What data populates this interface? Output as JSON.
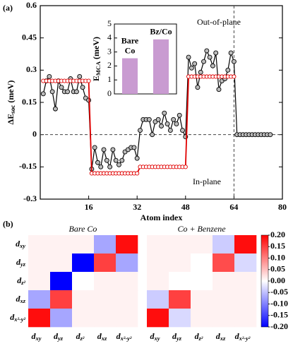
{
  "panel_labels": [
    "(a)",
    "(b)"
  ],
  "chart_data": [
    {
      "type": "line",
      "ylabel": {
        "text": "ΔE",
        "sub": "soc",
        "unit": "(meV)"
      },
      "xlabel": "Atom index",
      "annotations": [
        "Out-of-plane",
        "In-plane"
      ],
      "xlim": [
        0,
        80
      ],
      "xticks": [
        16,
        32,
        48,
        64,
        80
      ],
      "ylim": [
        -0.3,
        0.6
      ],
      "yticks": [
        -0.3,
        -0.15,
        0,
        0.15,
        0.3,
        0.45,
        0.6
      ],
      "vline_x": 64,
      "x": [
        1,
        2,
        3,
        4,
        5,
        6,
        7,
        8,
        9,
        10,
        11,
        12,
        13,
        14,
        15,
        16,
        17,
        18,
        19,
        20,
        21,
        22,
        23,
        24,
        25,
        26,
        27,
        28,
        29,
        30,
        31,
        32,
        33,
        34,
        35,
        36,
        37,
        38,
        39,
        40,
        41,
        42,
        43,
        44,
        45,
        46,
        47,
        48,
        49,
        50,
        51,
        52,
        53,
        54,
        55,
        56,
        57,
        58,
        59,
        60,
        61,
        62,
        63,
        64,
        65,
        66,
        67,
        68,
        69,
        70,
        71,
        72,
        73,
        74,
        75,
        76
      ],
      "series": [
        {
          "color": "#000000",
          "marker": "#bbbbbb",
          "values": [
            0.19,
            0.25,
            0.27,
            0.2,
            0.12,
            0.25,
            0.22,
            0.2,
            0.2,
            0.26,
            0.2,
            0.2,
            0.27,
            0.22,
            0.17,
            0.16,
            -0.16,
            -0.06,
            -0.13,
            -0.15,
            -0.07,
            -0.12,
            -0.15,
            -0.07,
            -0.12,
            -0.14,
            -0.12,
            -0.08,
            -0.07,
            -0.06,
            -0.06,
            -0.11,
            0.02,
            0.07,
            0.07,
            0.07,
            0.0,
            0.06,
            0.07,
            0.04,
            0.1,
            0.05,
            0.02,
            0.07,
            0.05,
            0.09,
            0.02,
            -0.01,
            0.36,
            0.31,
            0.33,
            0.22,
            0.29,
            0.34,
            0.39,
            0.36,
            0.32,
            0.38,
            0.21,
            0.25,
            0.26,
            0.3,
            0.38,
            0.34,
            0,
            0,
            0,
            0,
            0,
            0,
            0,
            0,
            0,
            0,
            0,
            0
          ]
        },
        {
          "color": "#e00000",
          "marker": "#ffffff",
          "values": [
            0.25,
            0.25,
            0.25,
            0.25,
            0.25,
            0.25,
            0.25,
            0.25,
            0.25,
            0.25,
            0.25,
            0.25,
            0.25,
            0.25,
            0.25,
            0.25,
            -0.18,
            -0.18,
            -0.18,
            -0.18,
            -0.18,
            -0.18,
            -0.18,
            -0.18,
            -0.18,
            -0.18,
            -0.18,
            -0.18,
            -0.18,
            -0.18,
            -0.18,
            -0.18,
            -0.15,
            -0.15,
            -0.15,
            -0.15,
            -0.15,
            -0.15,
            -0.15,
            -0.15,
            -0.15,
            -0.15,
            -0.15,
            -0.15,
            -0.15,
            -0.15,
            -0.15,
            -0.15,
            0.27,
            0.27,
            0.27,
            0.27,
            0.27,
            0.27,
            0.27,
            0.27,
            0.27,
            0.27,
            0.27,
            0.27,
            0.27,
            0.27,
            0.27,
            0.27,
            null,
            null,
            null,
            null,
            null,
            null,
            null,
            null,
            null,
            null,
            null,
            null
          ]
        }
      ]
    },
    {
      "type": "bar",
      "ylabel": {
        "text": "E",
        "sub": "MCA",
        "unit": "(meV)"
      },
      "categories": [
        [
          "Bare",
          "Co"
        ],
        [
          "Bz/Co"
        ]
      ],
      "values": [
        2.55,
        3.9
      ],
      "color": "#c99bd1",
      "ylim": [
        0,
        5
      ],
      "yticks": [
        0,
        1,
        2,
        3,
        4,
        5
      ]
    },
    {
      "type": "heatmap",
      "labels": [
        {
          "base": "d",
          "sub": "xy"
        },
        {
          "base": "d",
          "sub": "yz"
        },
        {
          "base": "d",
          "sub": "z²"
        },
        {
          "base": "d",
          "sub": "xz"
        },
        {
          "base": "d",
          "sub": "x²-y²"
        }
      ],
      "zlim": [
        -0.2,
        0.2
      ],
      "zticks": [
        {
          "value": 0.2,
          "label": "0.20"
        },
        0.15,
        {
          "value": 0.1,
          "label": "0.10"
        },
        0.05,
        {
          "value": 0,
          "label": "0.00"
        },
        -0.05,
        {
          "value": -0.1,
          "label": "-0.10"
        },
        -0.15,
        {
          "value": -0.2,
          "label": "-0.20"
        }
      ],
      "panels": [
        {
          "title": "Bare Co",
          "matrix": [
            [
              0.01,
              0.01,
              0.01,
              -0.07,
              0.19
            ],
            [
              0.01,
              0.01,
              -0.2,
              0.15,
              -0.07
            ],
            [
              0.01,
              -0.2,
              0.0,
              0.01,
              0.01
            ],
            [
              -0.07,
              0.15,
              0.01,
              0.01,
              0.01
            ],
            [
              0.19,
              -0.07,
              0.01,
              0.01,
              0.01
            ]
          ]
        },
        {
          "title": "Co + Benzene",
          "matrix": [
            [
              0.01,
              0.01,
              0.01,
              -0.04,
              0.19
            ],
            [
              0.01,
              0.01,
              0.0,
              0.14,
              -0.03
            ],
            [
              0.01,
              0.0,
              0.0,
              0.01,
              0.01
            ],
            [
              -0.04,
              0.15,
              0.01,
              0.01,
              0.01
            ],
            [
              0.19,
              -0.03,
              0.01,
              0.01,
              0.01
            ]
          ]
        }
      ]
    }
  ]
}
